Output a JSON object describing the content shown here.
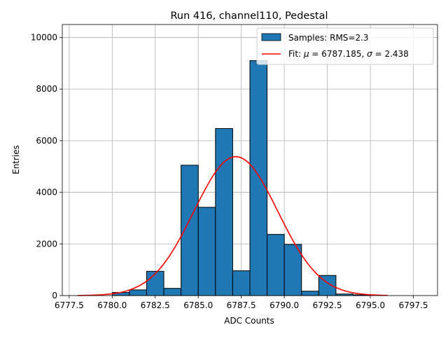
{
  "chart_data": {
    "type": "bar",
    "title": "Run 416, channel110, Pedestal",
    "xlabel": "ADC Counts",
    "ylabel": "Entries",
    "xlim": [
      6777.1,
      6798.9
    ],
    "ylim": [
      0,
      10500
    ],
    "xticks": [
      6777.5,
      6780.0,
      6782.5,
      6785.0,
      6787.5,
      6790.0,
      6792.5,
      6795.0,
      6797.5
    ],
    "xtick_labels": [
      "6777.5",
      "6780.0",
      "6782.5",
      "6785.0",
      "6787.5",
      "6790.0",
      "6792.5",
      "6795.0",
      "6797.5"
    ],
    "yticks": [
      0,
      2000,
      4000,
      6000,
      8000,
      10000
    ],
    "ytick_labels": [
      "0",
      "2000",
      "4000",
      "6000",
      "8000",
      "10000"
    ],
    "grid": true,
    "legend_position": "top-right",
    "histogram": {
      "name": "Samples: RMS=2.3",
      "color": "#1f77b4",
      "edgecolor": "#000000",
      "bin_edges": [
        6780.0,
        6781.0,
        6782.0,
        6783.0,
        6784.0,
        6785.0,
        6786.0,
        6787.0,
        6788.0,
        6789.0,
        6790.0,
        6791.0,
        6792.0,
        6793.0,
        6794.0,
        6795.0
      ],
      "counts": [
        120,
        220,
        940,
        280,
        5050,
        3420,
        6470,
        960,
        9100,
        2370,
        1980,
        170,
        780,
        60,
        30
      ]
    },
    "fit": {
      "name_prefix": "Fit: ",
      "mu_symbol": "μ",
      "mu_text": " = 6787.185, ",
      "sigma_symbol": "σ",
      "sigma_text": " = 2.438",
      "color": "#ff0000",
      "mu": 6787.185,
      "sigma": 2.438,
      "amplitude": 5380,
      "x_range": [
        6778.0,
        6796.0
      ]
    }
  }
}
